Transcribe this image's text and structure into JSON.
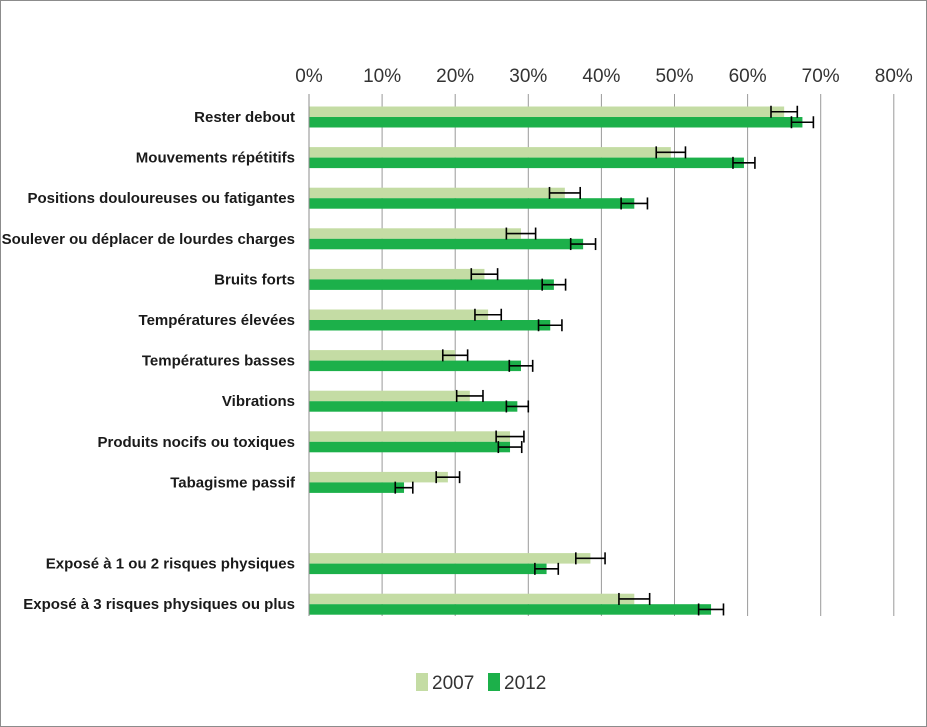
{
  "chart_data": {
    "type": "bar",
    "orientation": "horizontal",
    "title": "",
    "xlabel": "",
    "ylabel": "",
    "xlim": [
      0,
      80
    ],
    "x_ticks": [
      "0%",
      "10%",
      "20%",
      "30%",
      "40%",
      "50%",
      "60%",
      "70%",
      "80%"
    ],
    "x_axis_position": "top",
    "grid": true,
    "legend_position": "bottom",
    "categories": [
      "Rester debout",
      "Mouvements répétitifs",
      "Positions douloureuses ou fatigantes",
      "Soulever ou déplacer de lourdes charges",
      "Bruits forts",
      "Températures élevées",
      "Températures basses",
      "Vibrations",
      "Produits nocifs ou toxiques",
      "Tabagisme passif",
      "",
      "Exposé à 1 ou 2 risques physiques",
      "Exposé à 3 risques physiques ou plus"
    ],
    "series": [
      {
        "name": "2007",
        "color": "#c4dca4",
        "values": [
          65,
          49.5,
          35,
          29,
          24,
          24.5,
          20,
          22,
          27.5,
          19,
          null,
          38.5,
          44.5
        ],
        "error": [
          1.8,
          2.0,
          2.1,
          2.0,
          1.8,
          1.8,
          1.7,
          1.8,
          1.9,
          1.6,
          null,
          2.0,
          2.1
        ]
      },
      {
        "name": "2012",
        "color": "#1cb04a",
        "values": [
          67.5,
          59.5,
          44.5,
          37.5,
          33.5,
          33,
          29,
          28.5,
          27.5,
          13,
          null,
          32.5,
          55
        ],
        "error": [
          1.5,
          1.5,
          1.8,
          1.7,
          1.6,
          1.6,
          1.6,
          1.5,
          1.6,
          1.2,
          null,
          1.6,
          1.7
        ]
      }
    ]
  }
}
